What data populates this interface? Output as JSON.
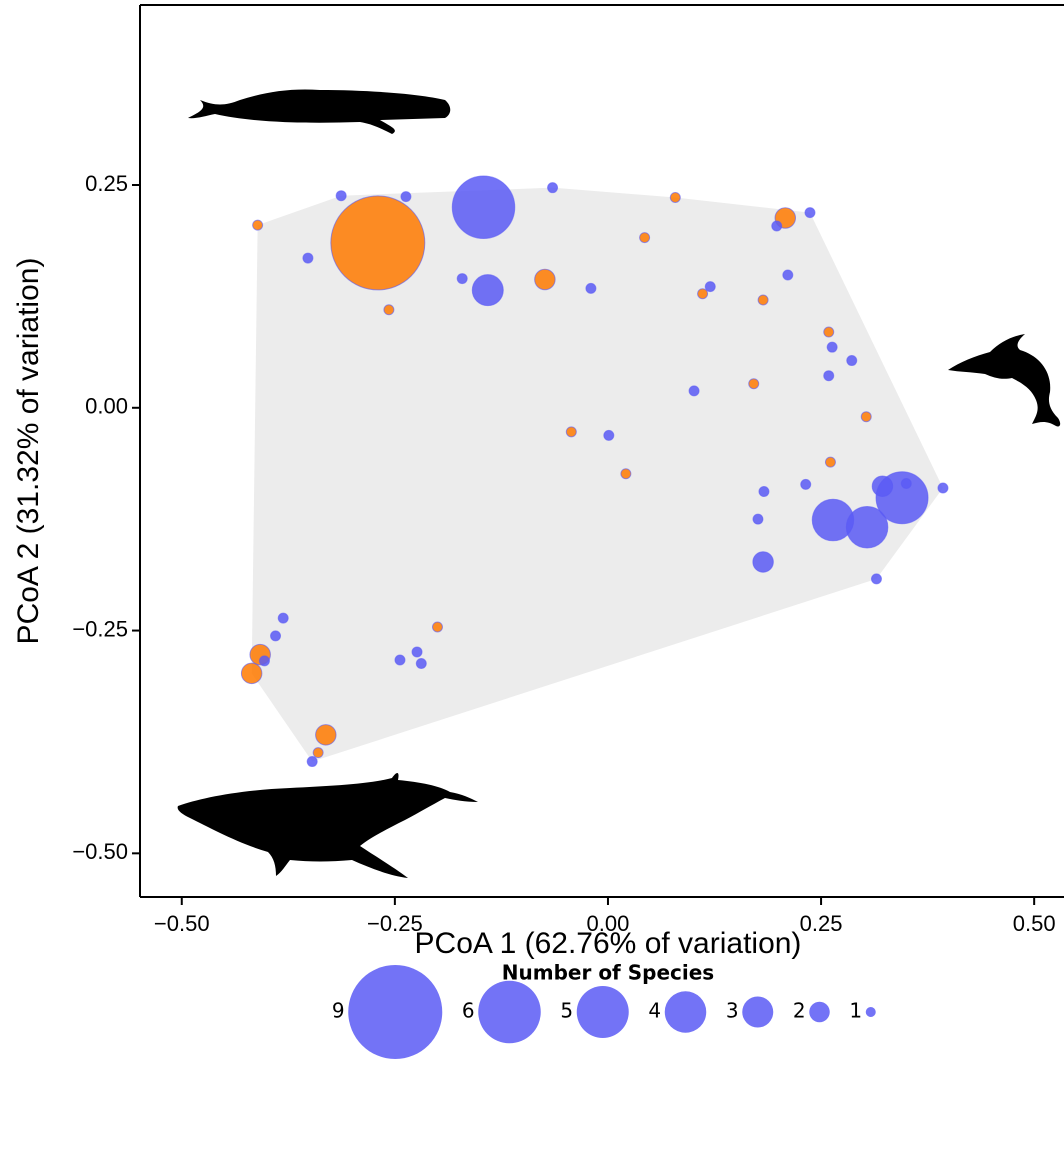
{
  "chart_data": {
    "type": "bubble",
    "x_label": "PCoA 1 (62.76% of variation)",
    "y_label": "PCoA 2 (31.32% of variation)",
    "xlim": [
      -0.549,
      0.535
    ],
    "ylim": [
      -0.549,
      0.452
    ],
    "xticks": [
      {
        "value": -0.5,
        "label": "−0.50"
      },
      {
        "value": -0.25,
        "label": "−0.25"
      },
      {
        "value": 0,
        "label": "0.00"
      },
      0.25,
      {
        "value": 0.5,
        "label": "0.50"
      }
    ],
    "yticks": [
      0.25,
      {
        "value": 0,
        "label": "0.00"
      },
      {
        "value": -0.25,
        "label": "−0.25"
      },
      {
        "value": -0.5,
        "label": "−0.50"
      }
    ],
    "hull_color": "#ececec",
    "series": [
      {
        "color": "#5a5af5",
        "x": [
          -0.313,
          -0.237,
          -0.146,
          -0.065,
          -0.352,
          -0.171,
          -0.141,
          -0.02,
          0.12,
          0.198,
          0.237,
          0.211,
          0.263,
          0.286,
          0.259,
          0.101,
          0.001,
          0.232,
          0.183,
          0.176,
          0.264,
          0.304,
          0.345,
          0.322,
          0.35,
          0.393,
          0.182,
          0.315,
          -0.381,
          -0.39,
          -0.403,
          -0.244,
          -0.224,
          -0.219,
          -0.347
        ],
        "y": [
          0.238,
          0.237,
          0.225,
          0.247,
          0.168,
          0.145,
          0.132,
          0.134,
          0.136,
          0.204,
          0.219,
          0.149,
          0.068,
          0.053,
          0.036,
          0.019,
          -0.031,
          -0.086,
          -0.094,
          -0.125,
          -0.126,
          -0.134,
          -0.101,
          -0.088,
          -0.085,
          -0.09,
          -0.173,
          -0.192,
          -0.236,
          -0.256,
          -0.284,
          -0.283,
          -0.274,
          -0.287,
          -0.397
        ],
        "sizes": [
          1,
          1,
          6,
          1,
          1,
          1,
          3,
          1,
          1,
          1,
          1,
          1,
          1,
          1,
          1,
          1,
          1,
          1,
          1,
          1,
          4,
          4,
          5,
          2,
          1,
          1,
          2,
          1,
          1,
          1,
          1,
          1,
          1,
          1,
          1
        ]
      },
      {
        "color": "#ff7a00",
        "x": [
          -0.411,
          -0.27,
          -0.257,
          -0.074,
          0.043,
          0.079,
          0.111,
          0.182,
          0.208,
          0.259,
          0.171,
          0.303,
          -0.043,
          0.021,
          0.261,
          -0.2,
          -0.408,
          -0.418,
          -0.331,
          -0.34
        ],
        "y": [
          0.205,
          0.185,
          0.11,
          0.144,
          0.191,
          0.236,
          0.128,
          0.121,
          0.213,
          0.085,
          0.027,
          -0.01,
          -0.027,
          -0.074,
          -0.061,
          -0.246,
          -0.277,
          -0.298,
          -0.367,
          -0.387
        ],
        "sizes": [
          1,
          9,
          1,
          2,
          1,
          1,
          1,
          1,
          2,
          1,
          1,
          1,
          1,
          1,
          1,
          1,
          2,
          2,
          2,
          1
        ]
      }
    ],
    "size_legend": {
      "title": "Number of Species",
      "color": "#5a5af5",
      "values": [
        9,
        6,
        5,
        4,
        3,
        2,
        1
      ]
    }
  }
}
